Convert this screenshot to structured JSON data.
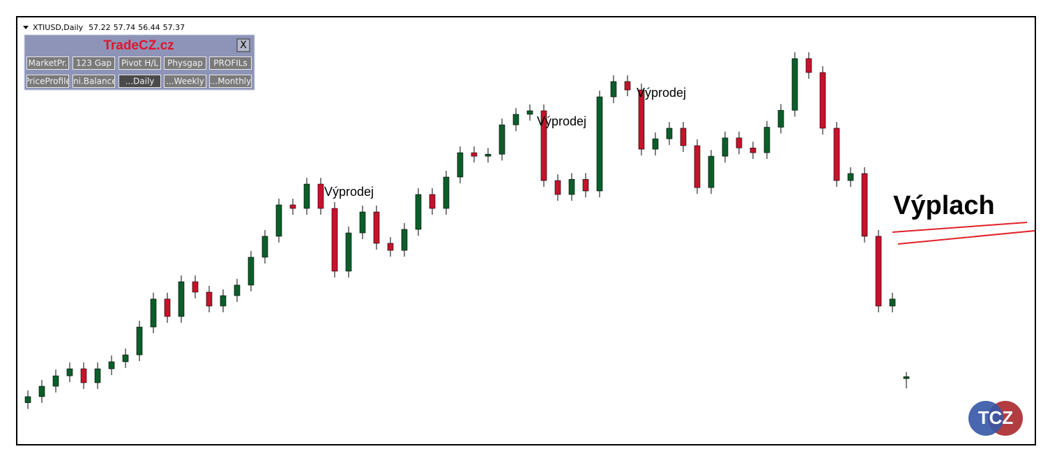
{
  "chart_data": {
    "type": "candlestick",
    "symbol": "XTIUSD,Daily",
    "ylim": [
      52,
      86
    ],
    "up_color": "#0b5e2a",
    "down_color": "#c4132b",
    "open": [
      55.3,
      55.78,
      56.61,
      57.44,
      58.0,
      56.89,
      58.0,
      58.56,
      59.11,
      61.33,
      63.56,
      62.17,
      64.94,
      64.11,
      63.0,
      63.83,
      64.67,
      66.89,
      68.56,
      71.06,
      70.78,
      72.72,
      70.78,
      65.78,
      68.83,
      70.5,
      68.0,
      67.44,
      69.11,
      71.89,
      70.78,
      73.28,
      75.22,
      74.94,
      75.1,
      77.44,
      78.28,
      78.56,
      73.0,
      71.89,
      73.1,
      72.17,
      79.67,
      80.89,
      80.22,
      75.5,
      76.33,
      77.17,
      75.78,
      72.44,
      74.94,
      76.4,
      75.6,
      75.22,
      77.25,
      78.6,
      82.72,
      81.61,
      77.17,
      73.0,
      73.56,
      68.56,
      63.0,
      57.22
    ],
    "high": [
      56.28,
      57.11,
      57.94,
      58.5,
      58.5,
      58.5,
      59.06,
      59.61,
      61.83,
      64.06,
      64.06,
      65.44,
      65.44,
      64.61,
      64.33,
      65.17,
      67.39,
      69.06,
      71.56,
      71.56,
      73.22,
      73.22,
      71.28,
      69.33,
      71.0,
      71.0,
      68.5,
      69.61,
      72.39,
      72.39,
      73.78,
      75.72,
      75.72,
      75.6,
      77.94,
      78.78,
      79.06,
      79.06,
      73.5,
      73.6,
      73.6,
      80.17,
      81.39,
      81.39,
      80.72,
      76.83,
      77.67,
      77.67,
      76.28,
      75.44,
      76.9,
      76.9,
      76.1,
      77.75,
      79.1,
      83.22,
      83.22,
      82.11,
      77.67,
      74.06,
      74.06,
      69.06,
      64.06,
      57.74
    ],
    "low": [
      54.8,
      55.28,
      56.11,
      56.94,
      56.39,
      56.39,
      57.5,
      58.06,
      58.61,
      60.83,
      61.67,
      61.67,
      63.61,
      62.5,
      62.5,
      63.33,
      64.17,
      66.39,
      68.06,
      70.28,
      70.28,
      70.28,
      65.28,
      65.28,
      68.33,
      67.5,
      66.94,
      66.94,
      68.61,
      70.28,
      70.28,
      72.78,
      74.44,
      74.44,
      74.6,
      76.94,
      77.78,
      72.5,
      71.39,
      71.39,
      71.67,
      71.67,
      79.17,
      79.72,
      75.0,
      75.0,
      75.83,
      75.28,
      71.94,
      71.94,
      74.44,
      75.1,
      74.72,
      74.72,
      76.75,
      78.1,
      81.11,
      76.67,
      72.5,
      72.5,
      68.06,
      62.5,
      62.5,
      56.44
    ],
    "close": [
      55.78,
      56.61,
      57.44,
      58.0,
      56.89,
      58.0,
      58.56,
      59.11,
      61.33,
      63.56,
      62.17,
      64.94,
      64.11,
      63.0,
      63.83,
      64.67,
      66.89,
      68.56,
      71.06,
      70.78,
      72.72,
      70.78,
      65.78,
      68.83,
      70.5,
      68.0,
      67.44,
      69.11,
      71.89,
      70.78,
      73.28,
      75.22,
      74.94,
      75.1,
      77.44,
      78.28,
      78.56,
      73.0,
      71.89,
      73.1,
      72.17,
      79.67,
      80.89,
      80.22,
      75.5,
      76.33,
      77.17,
      75.78,
      72.44,
      74.94,
      76.4,
      75.6,
      75.22,
      77.25,
      78.6,
      82.72,
      81.61,
      77.17,
      73.0,
      73.56,
      68.56,
      63.0,
      63.56,
      57.37
    ],
    "annotations": [
      "Výprodej",
      "Výprodej",
      "Výprodej",
      "Výplach"
    ]
  },
  "panel": {
    "title": "TradeCZ.cz",
    "close": "X",
    "buttons": [
      [
        "MarketPr.",
        "123 Gap",
        "Pivot H/L",
        "Physgap",
        "PROFILs"
      ],
      [
        "PriceProfile",
        "Ini.Balance",
        "...Daily",
        "...Weekly",
        "...Monthly"
      ]
    ]
  },
  "logo": "TCZ"
}
